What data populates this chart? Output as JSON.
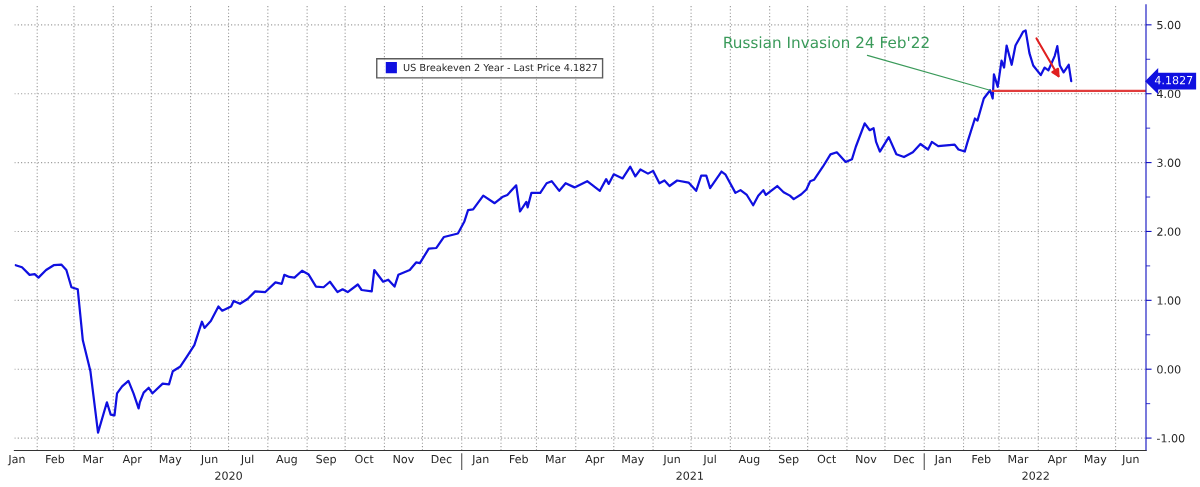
{
  "chart_data": {
    "type": "line",
    "series": [
      {
        "name": "US Breakeven 2 Year - Last Price 4.1827",
        "color": "#1010e0",
        "x": [
          "2020-01-15",
          "2020-01-20",
          "2020-01-26",
          "2020-01-30",
          "2020-02-02",
          "2020-02-08",
          "2020-02-14",
          "2020-02-20",
          "2020-02-24",
          "2020-02-28",
          "2020-03-04",
          "2020-03-08",
          "2020-03-14",
          "2020-03-20",
          "2020-03-27",
          "2020-03-30",
          "2020-04-02",
          "2020-04-04",
          "2020-04-08",
          "2020-04-13",
          "2020-04-17",
          "2020-04-21",
          "2020-04-22",
          "2020-04-25",
          "2020-04-29",
          "2020-05-02",
          "2020-05-10",
          "2020-05-15",
          "2020-05-18",
          "2020-05-24",
          "2020-05-29",
          "2020-06-04",
          "2020-06-10",
          "2020-06-12",
          "2020-06-17",
          "2020-06-23",
          "2020-06-26",
          "2020-07-03",
          "2020-07-05",
          "2020-07-10",
          "2020-07-16",
          "2020-07-22",
          "2020-07-30",
          "2020-08-07",
          "2020-08-12",
          "2020-08-14",
          "2020-08-18",
          "2020-08-22",
          "2020-08-28",
          "2020-09-02",
          "2020-09-08",
          "2020-09-14",
          "2020-09-19",
          "2020-09-25",
          "2020-09-29",
          "2020-10-03",
          "2020-10-11",
          "2020-10-14",
          "2020-10-22",
          "2020-10-24",
          "2020-10-31",
          "2020-11-04",
          "2020-11-09",
          "2020-11-12",
          "2020-11-21",
          "2020-11-26",
          "2020-11-29",
          "2020-12-06",
          "2020-12-12",
          "2020-12-18",
          "2020-12-29",
          "2021-01-03",
          "2021-01-06",
          "2021-01-10",
          "2021-01-18",
          "2021-01-27",
          "2021-02-02",
          "2021-02-06",
          "2021-02-13",
          "2021-02-16",
          "2021-02-21",
          "2021-02-22",
          "2021-02-25",
          "2021-03-04",
          "2021-03-09",
          "2021-03-13",
          "2021-03-19",
          "2021-03-24",
          "2021-03-31",
          "2021-04-10",
          "2021-04-20",
          "2021-04-25",
          "2021-04-27",
          "2021-05-01",
          "2021-05-08",
          "2021-05-14",
          "2021-05-18",
          "2021-05-22",
          "2021-05-28",
          "2021-06-01",
          "2021-06-06",
          "2021-06-10",
          "2021-06-14",
          "2021-06-20",
          "2021-06-29",
          "2021-07-05",
          "2021-07-09",
          "2021-07-13",
          "2021-07-16",
          "2021-07-25",
          "2021-07-28",
          "2021-08-05",
          "2021-08-09",
          "2021-08-14",
          "2021-08-19",
          "2021-08-23",
          "2021-08-27",
          "2021-08-29",
          "2021-09-07",
          "2021-09-12",
          "2021-09-17",
          "2021-09-20",
          "2021-09-26",
          "2021-09-30",
          "2021-10-03",
          "2021-10-06",
          "2021-10-13",
          "2021-10-19",
          "2021-10-24",
          "2021-10-31",
          "2021-11-05",
          "2021-11-08",
          "2021-11-15",
          "2021-11-19",
          "2021-11-22",
          "2021-11-24",
          "2021-11-27",
          "2021-12-04",
          "2021-12-10",
          "2021-12-16",
          "2021-12-23",
          "2021-12-29",
          "2022-01-04",
          "2022-01-07",
          "2022-01-12",
          "2022-01-25",
          "2022-01-28",
          "2022-02-02",
          "2022-02-04",
          "2022-02-10",
          "2022-02-12",
          "2022-02-17",
          "2022-02-22",
          "2022-02-24",
          "2022-02-25",
          "2022-02-28",
          "2022-03-03",
          "2022-03-05",
          "2022-03-07",
          "2022-03-11",
          "2022-03-14",
          "2022-03-18",
          "2022-03-20",
          "2022-03-22",
          "2022-03-25",
          "2022-03-28",
          "2022-04-03",
          "2022-04-06",
          "2022-04-09",
          "2022-04-14",
          "2022-04-16",
          "2022-04-18",
          "2022-04-21",
          "2022-04-25",
          "2022-04-27"
        ],
        "values": [
          1.51,
          1.48,
          1.37,
          1.38,
          1.33,
          1.44,
          1.51,
          1.52,
          1.44,
          1.19,
          1.16,
          0.42,
          -0.03,
          -0.92,
          -0.48,
          -0.66,
          -0.67,
          -0.35,
          -0.25,
          -0.17,
          -0.35,
          -0.57,
          -0.48,
          -0.34,
          -0.27,
          -0.35,
          -0.21,
          -0.22,
          -0.03,
          0.04,
          0.18,
          0.35,
          0.69,
          0.6,
          0.7,
          0.91,
          0.85,
          0.91,
          0.99,
          0.95,
          1.02,
          1.13,
          1.12,
          1.26,
          1.24,
          1.37,
          1.34,
          1.33,
          1.43,
          1.38,
          1.2,
          1.19,
          1.27,
          1.12,
          1.16,
          1.12,
          1.23,
          1.15,
          1.13,
          1.44,
          1.27,
          1.3,
          1.2,
          1.37,
          1.44,
          1.55,
          1.54,
          1.75,
          1.76,
          1.92,
          1.97,
          2.14,
          2.31,
          2.32,
          2.52,
          2.41,
          2.5,
          2.53,
          2.67,
          2.29,
          2.43,
          2.35,
          2.56,
          2.56,
          2.7,
          2.73,
          2.59,
          2.7,
          2.64,
          2.73,
          2.59,
          2.76,
          2.69,
          2.83,
          2.77,
          2.94,
          2.8,
          2.9,
          2.84,
          2.88,
          2.7,
          2.74,
          2.66,
          2.74,
          2.71,
          2.59,
          2.81,
          2.81,
          2.63,
          2.87,
          2.83,
          2.56,
          2.6,
          2.53,
          2.38,
          2.52,
          2.6,
          2.53,
          2.66,
          2.57,
          2.52,
          2.47,
          2.54,
          2.61,
          2.73,
          2.75,
          2.94,
          3.12,
          3.15,
          3.01,
          3.05,
          3.23,
          3.57,
          3.47,
          3.5,
          3.3,
          3.16,
          3.37,
          3.12,
          3.08,
          3.15,
          3.27,
          3.19,
          3.3,
          3.24,
          3.26,
          3.19,
          3.16,
          3.29,
          3.64,
          3.61,
          3.93,
          4.05,
          3.93,
          4.28,
          4.1,
          4.48,
          4.38,
          4.7,
          4.42,
          4.7,
          4.83,
          4.9,
          4.92,
          4.59,
          4.41,
          4.27,
          4.38,
          4.34,
          4.55,
          4.69,
          4.41,
          4.31,
          4.42,
          4.1827
        ]
      },
      {
        "type": "line",
        "color": "#e03c3c",
        "x": [
          "2022-02-24",
          "2022-06-25"
        ],
        "values": [
          4.04,
          4.04
        ]
      }
    ],
    "annotations": [
      {
        "text": "Russian Invasion 24 Feb'22",
        "x": "2022-02-24",
        "y": 4.04
      },
      "4.1827"
    ],
    "xlim": [
      "2020-01-14",
      "2022-06-25"
    ],
    "xticks": [
      {
        "value": "2020-01-16",
        "label": "Jan"
      },
      {
        "value": "2020-02-01",
        "label": null
      },
      {
        "value": "2020-02-15",
        "label": "Feb"
      },
      {
        "value": "2020-03-01",
        "label": null
      },
      {
        "value": "2020-03-16",
        "label": "Mar"
      },
      {
        "value": "2020-04-01",
        "label": null
      },
      {
        "value": "2020-04-16",
        "label": "Apr"
      },
      {
        "value": "2020-05-01",
        "label": null
      },
      {
        "value": "2020-05-16",
        "label": "May"
      },
      {
        "value": "2020-06-01",
        "label": null
      },
      {
        "value": "2020-06-16",
        "label": "Jun"
      },
      {
        "value": "2020-07-01",
        "label": null
      },
      {
        "value": "2020-07-16",
        "label": "Jul"
      },
      {
        "value": "2020-08-01",
        "label": null
      },
      {
        "value": "2020-08-16",
        "label": "Aug"
      },
      {
        "value": "2020-09-01",
        "label": null
      },
      {
        "value": "2020-09-16",
        "label": "Sep"
      },
      {
        "value": "2020-10-01",
        "label": null
      },
      {
        "value": "2020-10-16",
        "label": "Oct"
      },
      {
        "value": "2020-11-01",
        "label": null
      },
      {
        "value": "2020-11-16",
        "label": "Nov"
      },
      {
        "value": "2020-12-01",
        "label": null
      },
      {
        "value": "2020-12-16",
        "label": "Dec"
      },
      {
        "value": "2021-01-01",
        "label": null
      },
      {
        "value": "2021-01-16",
        "label": "Jan"
      },
      {
        "value": "2021-02-01",
        "label": null
      },
      {
        "value": "2021-02-15",
        "label": "Feb"
      },
      {
        "value": "2021-03-01",
        "label": null
      },
      {
        "value": "2021-03-16",
        "label": "Mar"
      },
      {
        "value": "2021-04-01",
        "label": null
      },
      {
        "value": "2021-04-16",
        "label": "Apr"
      },
      {
        "value": "2021-05-01",
        "label": null
      },
      {
        "value": "2021-05-16",
        "label": "May"
      },
      {
        "value": "2021-06-01",
        "label": null
      },
      {
        "value": "2021-06-16",
        "label": "Jun"
      },
      {
        "value": "2021-07-01",
        "label": null
      },
      {
        "value": "2021-07-16",
        "label": "Jul"
      },
      {
        "value": "2021-08-01",
        "label": null
      },
      {
        "value": "2021-08-16",
        "label": "Aug"
      },
      {
        "value": "2021-09-01",
        "label": null
      },
      {
        "value": "2021-09-16",
        "label": "Sep"
      },
      {
        "value": "2021-10-01",
        "label": null
      },
      {
        "value": "2021-10-16",
        "label": "Oct"
      },
      {
        "value": "2021-11-01",
        "label": null
      },
      {
        "value": "2021-11-16",
        "label": "Nov"
      },
      {
        "value": "2021-12-01",
        "label": null
      },
      {
        "value": "2021-12-16",
        "label": "Dec"
      },
      {
        "value": "2022-01-01",
        "label": null
      },
      {
        "value": "2022-01-16",
        "label": "Jan"
      },
      {
        "value": "2022-02-01",
        "label": null
      },
      {
        "value": "2022-02-15",
        "label": "Feb"
      },
      {
        "value": "2022-03-01",
        "label": null
      },
      {
        "value": "2022-03-16",
        "label": "Mar"
      },
      {
        "value": "2022-04-01",
        "label": null
      },
      {
        "value": "2022-04-16",
        "label": "Apr"
      },
      {
        "value": "2022-05-01",
        "label": null
      },
      {
        "value": "2022-05-16",
        "label": "May"
      },
      {
        "value": "2022-06-01",
        "label": null
      },
      {
        "value": "2022-06-13",
        "label": "Jun"
      }
    ],
    "x2lim": [
      "2020-01-14",
      "2022-06-25"
    ],
    "x2ticks": [
      {
        "value": "2020-07-01",
        "label": "2020"
      },
      {
        "value": "2021-01-01",
        "label": null
      },
      {
        "value": "2021-06-30",
        "label": "2021"
      },
      {
        "value": "2022-01-01",
        "label": null
      },
      {
        "value": "2022-03-30",
        "label": "2022"
      }
    ],
    "ylim": [
      -1.18,
      5.29
    ],
    "yticks": [
      {
        "value": -1,
        "label": "-1.00"
      },
      {
        "value": -0.5,
        "label": null
      },
      {
        "value": 0,
        "label": "0.00"
      },
      {
        "value": 0.5,
        "label": null
      },
      {
        "value": 1,
        "label": "1.00"
      },
      {
        "value": 1.5,
        "label": null
      },
      {
        "value": 2,
        "label": "2.00"
      },
      {
        "value": 2.5,
        "label": null
      },
      {
        "value": 3,
        "label": "3.00"
      },
      {
        "value": 3.5,
        "label": null
      },
      {
        "value": 4,
        "label": "4.00"
      },
      {
        "value": 4.5,
        "label": null
      },
      {
        "value": 5,
        "label": "5.00"
      }
    ],
    "grid": true,
    "legend": "top"
  }
}
